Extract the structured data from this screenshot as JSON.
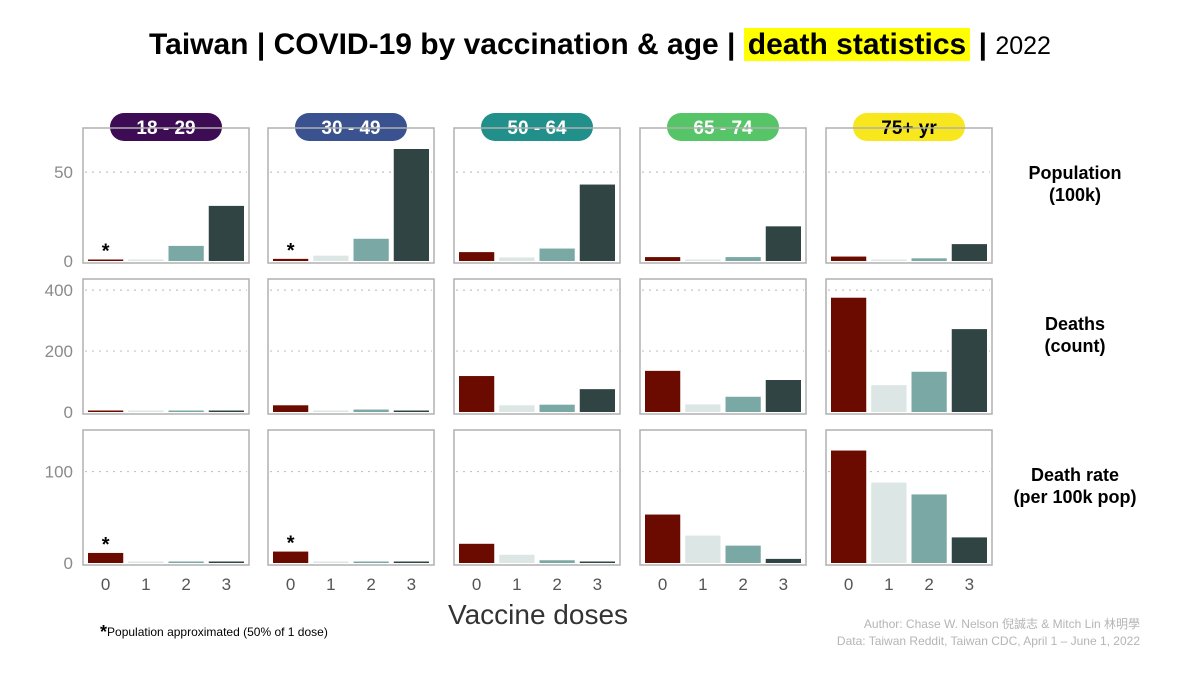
{
  "title": {
    "main": "Taiwan  |  COVID-19 by vaccination & age  |",
    "highlight": "death statistics",
    "sep": "|",
    "year": "2022"
  },
  "chart_data": {
    "type": "bar",
    "facet_columns": [
      "18 - 29",
      "30 - 49",
      "50 - 64",
      "65 - 74",
      "75+ yr"
    ],
    "facet_colors": [
      "#3d0c55",
      "#3a5390",
      "#218f8a",
      "#56c568",
      "#f9e71e"
    ],
    "facet_text_colors": [
      "#ffffff",
      "#ffffff",
      "#ffffff",
      "#ffffff",
      "#000000"
    ],
    "categories": [
      "0",
      "1",
      "2",
      "3"
    ],
    "bar_colors": [
      "#6b0b00",
      "#dce6e4",
      "#7aa8a4",
      "#2f4443"
    ],
    "xlabel": "Vaccine doses",
    "grid": "dotted horizontal",
    "rows": [
      {
        "label": [
          "Population",
          "(100k)"
        ],
        "ylim": [
          0,
          72
        ],
        "yticks": [
          0,
          50
        ],
        "values": [
          [
            0.6,
            0.3,
            8.5,
            31
          ],
          [
            1.2,
            3,
            12.5,
            63
          ],
          [
            5,
            2,
            7,
            43
          ],
          [
            2.2,
            0.5,
            2.2,
            19.5
          ],
          [
            2.5,
            0.8,
            1.5,
            9.5
          ]
        ],
        "starred": [
          0,
          1
        ]
      },
      {
        "label": [
          "Deaths",
          "(count)"
        ],
        "ylim": [
          0,
          420
        ],
        "yticks": [
          0,
          200,
          400
        ],
        "values": [
          [
            4,
            1,
            1,
            2
          ],
          [
            22,
            5,
            8,
            3
          ],
          [
            118,
            22,
            24,
            75
          ],
          [
            135,
            25,
            50,
            105
          ],
          [
            375,
            88,
            132,
            272
          ]
        ],
        "starred": []
      },
      {
        "label": [
          "Death rate",
          "(per 100k pop)"
        ],
        "ylim": [
          0,
          140
        ],
        "yticks": [
          0,
          100
        ],
        "values": [
          [
            11,
            0.5,
            0.5,
            0.2
          ],
          [
            12.5,
            0.5,
            0.5,
            0.3
          ],
          [
            21,
            9,
            3,
            1
          ],
          [
            53,
            30,
            19,
            4.5
          ],
          [
            123,
            88,
            75,
            28
          ]
        ],
        "starred": [
          0,
          1
        ]
      }
    ],
    "star_symbol": "*"
  },
  "footnote": {
    "star": "*",
    "text": "Population approximated (50% of 1 dose)"
  },
  "credit": {
    "line1": "Author: Chase W. Nelson 倪誠志 & Mitch Lin 林明學",
    "line2": "Data: Taiwan Reddit, Taiwan CDC, April 1 – June 1, 2022"
  }
}
